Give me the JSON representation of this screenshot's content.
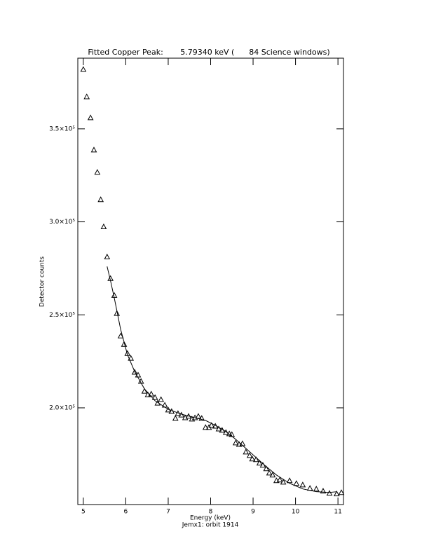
{
  "chart_data": {
    "type": "scatter",
    "title": "Fitted Copper Peak:       5.79340 keV (      84 Science windows)",
    "x_label": "Energy (keV)",
    "subtitle": "Jemx1: orbit 1914",
    "y_label": "Detector counts",
    "xlim": [
      4.87,
      11.13
    ],
    "xticks": [
      5,
      6,
      7,
      8,
      9,
      10,
      11
    ],
    "ylim": [
      148000,
      388000
    ],
    "yticks": [
      {
        "value": 200000,
        "label": "2.0×10⁵"
      },
      {
        "value": 250000,
        "label": "2.5×10⁵"
      },
      {
        "value": 300000,
        "label": "3.0×10⁵"
      },
      {
        "value": 350000,
        "label": "3.5×10⁵"
      }
    ],
    "series": [
      {
        "style": "triangle",
        "color": "#000000",
        "x": [
          5.0,
          5.08,
          5.17,
          5.25,
          5.33,
          5.41,
          5.48,
          5.56,
          5.64,
          5.73,
          5.79,
          5.88,
          5.96,
          6.04,
          6.12,
          6.21,
          6.29,
          6.36,
          6.44,
          6.52,
          6.6,
          6.69,
          6.75,
          6.83,
          6.92,
          7.0,
          7.08,
          7.17,
          7.23,
          7.31,
          7.4,
          7.48,
          7.56,
          7.63,
          7.71,
          7.79,
          7.88,
          7.96,
          8.02,
          8.11,
          8.19,
          8.27,
          8.36,
          8.44,
          8.5,
          8.59,
          8.67,
          8.75,
          8.83,
          8.92,
          8.98,
          9.07,
          9.15,
          9.23,
          9.31,
          9.38,
          9.46,
          9.55,
          9.63,
          9.71,
          9.86,
          10.02,
          10.17,
          10.34,
          10.49,
          10.65,
          10.8,
          10.97,
          11.08
        ],
        "values": [
          382000,
          367300,
          356000,
          338700,
          326700,
          312000,
          297400,
          281200,
          269600,
          260500,
          250800,
          238700,
          234200,
          229300,
          226700,
          219200,
          217700,
          214300,
          209000,
          207100,
          207500,
          205600,
          202600,
          204500,
          201500,
          198900,
          198100,
          194400,
          197000,
          196200,
          194700,
          195500,
          194000,
          194700,
          195500,
          194400,
          189500,
          189500,
          190600,
          190200,
          188700,
          188000,
          186800,
          186100,
          185700,
          181200,
          180400,
          180800,
          176300,
          174400,
          172600,
          172200,
          170300,
          169200,
          167300,
          165000,
          163900,
          160900,
          161300,
          160100,
          160900,
          159400,
          158600,
          156800,
          156400,
          155300,
          154100,
          153800,
          154500
        ]
      },
      {
        "style": "line",
        "color": "#000000",
        "x": [
          5.56,
          5.64,
          5.73,
          5.88,
          6.04,
          6.21,
          6.44,
          6.69,
          7.0,
          7.31,
          7.63,
          7.88,
          8.11,
          8.36,
          8.59,
          8.83,
          9.07,
          9.31,
          9.55,
          9.86,
          10.17,
          10.49,
          10.8,
          10.97
        ],
        "values": [
          276000,
          268400,
          259000,
          242100,
          228600,
          219500,
          210200,
          203800,
          199200,
          196600,
          194700,
          193200,
          190600,
          187200,
          183100,
          178200,
          173300,
          168400,
          163900,
          159400,
          156400,
          154900,
          154500,
          154900
        ]
      }
    ]
  }
}
